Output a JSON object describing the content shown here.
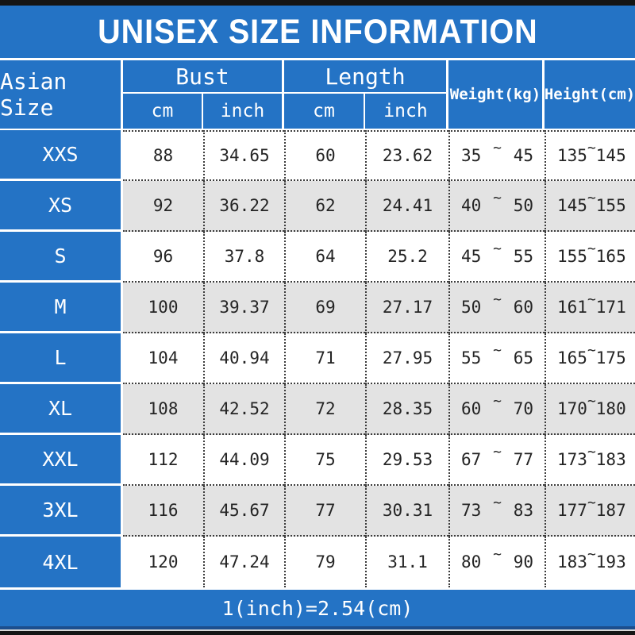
{
  "title": "UNISEX SIZE INFORMATION",
  "header": {
    "size_column": "Asian Size",
    "bust": "Bust",
    "length": "Length",
    "cm": "cm",
    "inch": "inch",
    "weight": "Weight(kg)",
    "height": "Height(cm)"
  },
  "tilde": "~",
  "footer_note": "1(inch)=2.54(cm)",
  "colors": {
    "blue": "#2473c5",
    "row_alt": "#e3e3e3",
    "bar_black": "#151515",
    "navy_line": "#1c4e8e"
  },
  "rows": [
    {
      "size": "XXS",
      "bust_cm": "88",
      "bust_inch": "34.65",
      "length_cm": "60",
      "length_inch": "23.62",
      "weight_min": "35",
      "weight_max": "45",
      "height_min": "135",
      "height_max": "145"
    },
    {
      "size": "XS",
      "bust_cm": "92",
      "bust_inch": "36.22",
      "length_cm": "62",
      "length_inch": "24.41",
      "weight_min": "40",
      "weight_max": "50",
      "height_min": "145",
      "height_max": "155"
    },
    {
      "size": "S",
      "bust_cm": "96",
      "bust_inch": "37.8",
      "length_cm": "64",
      "length_inch": "25.2",
      "weight_min": "45",
      "weight_max": "55",
      "height_min": "155",
      "height_max": "165"
    },
    {
      "size": "M",
      "bust_cm": "100",
      "bust_inch": "39.37",
      "length_cm": "69",
      "length_inch": "27.17",
      "weight_min": "50",
      "weight_max": "60",
      "height_min": "161",
      "height_max": "171"
    },
    {
      "size": "L",
      "bust_cm": "104",
      "bust_inch": "40.94",
      "length_cm": "71",
      "length_inch": "27.95",
      "weight_min": "55",
      "weight_max": "65",
      "height_min": "165",
      "height_max": "175"
    },
    {
      "size": "XL",
      "bust_cm": "108",
      "bust_inch": "42.52",
      "length_cm": "72",
      "length_inch": "28.35",
      "weight_min": "60",
      "weight_max": "70",
      "height_min": "170",
      "height_max": "180"
    },
    {
      "size": "XXL",
      "bust_cm": "112",
      "bust_inch": "44.09",
      "length_cm": "75",
      "length_inch": "29.53",
      "weight_min": "67",
      "weight_max": "77",
      "height_min": "173",
      "height_max": "183"
    },
    {
      "size": "3XL",
      "bust_cm": "116",
      "bust_inch": "45.67",
      "length_cm": "77",
      "length_inch": "30.31",
      "weight_min": "73",
      "weight_max": "83",
      "height_min": "177",
      "height_max": "187"
    },
    {
      "size": "4XL",
      "bust_cm": "120",
      "bust_inch": "47.24",
      "length_cm": "79",
      "length_inch": "31.1",
      "weight_min": "80",
      "weight_max": "90",
      "height_min": "183",
      "height_max": "193"
    }
  ],
  "chart_data": {
    "type": "table",
    "title": "UNISEX SIZE INFORMATION",
    "columns": [
      "Asian Size",
      "Bust cm",
      "Bust inch",
      "Length cm",
      "Length inch",
      "Weight(kg)",
      "Height(cm)"
    ],
    "rows": [
      [
        "XXS",
        "88",
        "34.65",
        "60",
        "23.62",
        "35 ~ 45",
        "135 ~ 145"
      ],
      [
        "XS",
        "92",
        "36.22",
        "62",
        "24.41",
        "40 ~ 50",
        "145 ~ 155"
      ],
      [
        "S",
        "96",
        "37.8",
        "64",
        "25.2",
        "45 ~ 55",
        "155 ~ 165"
      ],
      [
        "M",
        "100",
        "39.37",
        "69",
        "27.17",
        "50 ~ 60",
        "161 ~ 171"
      ],
      [
        "L",
        "104",
        "40.94",
        "71",
        "27.95",
        "55 ~ 65",
        "165 ~ 175"
      ],
      [
        "XL",
        "108",
        "42.52",
        "72",
        "28.35",
        "60 ~ 70",
        "170 ~ 180"
      ],
      [
        "XXL",
        "112",
        "44.09",
        "75",
        "29.53",
        "67 ~ 77",
        "173 ~ 183"
      ],
      [
        "3XL",
        "116",
        "45.67",
        "77",
        "30.31",
        "73 ~ 83",
        "177 ~ 187"
      ],
      [
        "4XL",
        "120",
        "47.24",
        "79",
        "31.1",
        "80 ~ 90",
        "183 ~ 193"
      ]
    ],
    "footnote": "1(inch)=2.54(cm)"
  }
}
